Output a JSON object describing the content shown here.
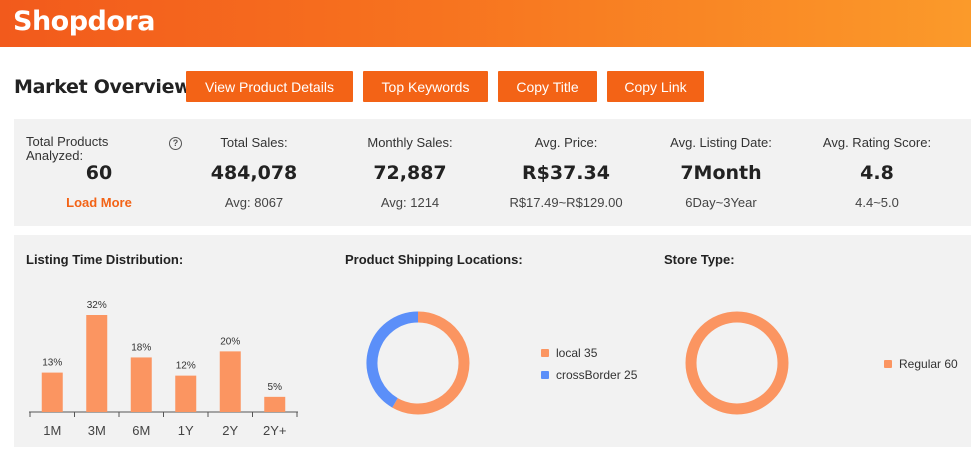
{
  "header": {
    "logo": "Shopdora"
  },
  "toolbar": {
    "title": "Market Overview",
    "view_details": "View Product Details",
    "top_keywords": "Top Keywords",
    "copy_title": "Copy Title",
    "copy_link": "Copy Link"
  },
  "stats": {
    "total_products": {
      "label": "Total Products Analyzed:",
      "value": "60",
      "action": "Load More",
      "help": "?"
    },
    "total_sales": {
      "label": "Total Sales:",
      "value": "484,078",
      "sub": "Avg: 8067"
    },
    "monthly_sales": {
      "label": "Monthly Sales:",
      "value": "72,887",
      "sub": "Avg: 1214"
    },
    "avg_price": {
      "label": "Avg. Price:",
      "value": "R$37.34",
      "sub": "R$17.49~R$129.00"
    },
    "avg_listing_date": {
      "label": "Avg. Listing Date:",
      "value": "7Month",
      "sub": "6Day~3Year"
    },
    "avg_rating": {
      "label": "Avg. Rating Score:",
      "value": "4.8",
      "sub": "4.4~5.0"
    }
  },
  "listing_time": {
    "title": "Listing Time Distribution:",
    "chart_data": {
      "type": "bar",
      "categories": [
        "1M",
        "3M",
        "6M",
        "1Y",
        "2Y",
        "2Y+"
      ],
      "values": [
        13,
        32,
        18,
        12,
        20,
        5
      ],
      "value_labels": [
        "13%",
        "32%",
        "18%",
        "12%",
        "20%",
        "5%"
      ],
      "color": "#fb9561",
      "ylim": [
        0,
        32
      ]
    }
  },
  "shipping": {
    "title": "Product Shipping Locations:",
    "chart_data": {
      "type": "pie",
      "labels": [
        "local",
        "crossBorder"
      ],
      "values": [
        35,
        25
      ],
      "legend": [
        "local 35",
        "crossBorder 25"
      ],
      "colors": [
        "#fb9561",
        "#5b8ff9"
      ]
    }
  },
  "store_type": {
    "title": "Store Type:",
    "chart_data": {
      "type": "pie",
      "labels": [
        "Regular"
      ],
      "values": [
        60
      ],
      "legend": [
        "Regular 60"
      ],
      "colors": [
        "#fb9561"
      ]
    }
  }
}
